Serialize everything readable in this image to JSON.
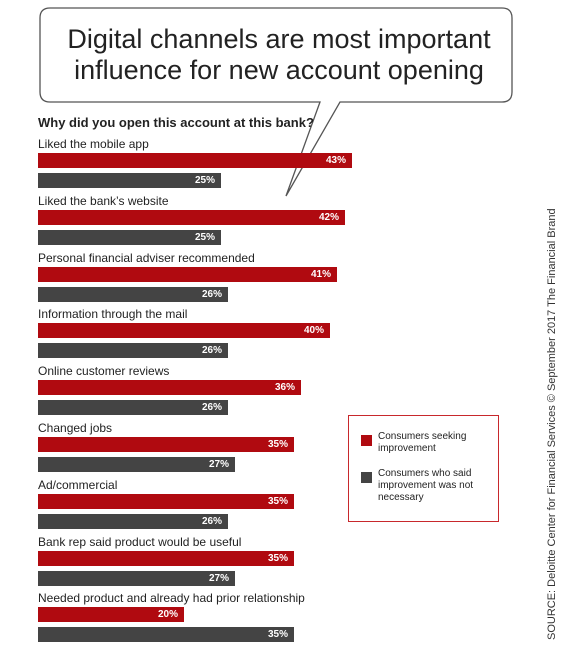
{
  "title_line1": "Digital channels are most important",
  "title_line2": "influence for new account opening",
  "source": "SOURCE: Deloitte Center for Financial Services © September 2017 The Financial Brand",
  "colors": {
    "seeking": "#b00a10",
    "not_necessary": "#444444",
    "legend_border": "#c8282c"
  },
  "chart_data": {
    "type": "bar",
    "orientation": "horizontal",
    "title": "Why did you open this account at this bank?",
    "categories": [
      "Liked the mobile app",
      "Liked the bank’s website",
      "Personal financial adviser recommended",
      "Information through the mail",
      "Online customer reviews",
      "Changed jobs",
      "Ad/commercial",
      "Bank rep said product would be useful",
      "Needed product and already had prior relationship"
    ],
    "series": [
      {
        "name": "Consumers seeking improvement",
        "values": [
          43,
          42,
          41,
          40,
          36,
          35,
          35,
          35,
          20
        ]
      },
      {
        "name": "Consumers who said improvement was not necessary",
        "values": [
          25,
          25,
          26,
          26,
          26,
          27,
          26,
          27,
          35
        ]
      }
    ],
    "value_suffix": "%",
    "legend_position": "right",
    "grid": false
  }
}
